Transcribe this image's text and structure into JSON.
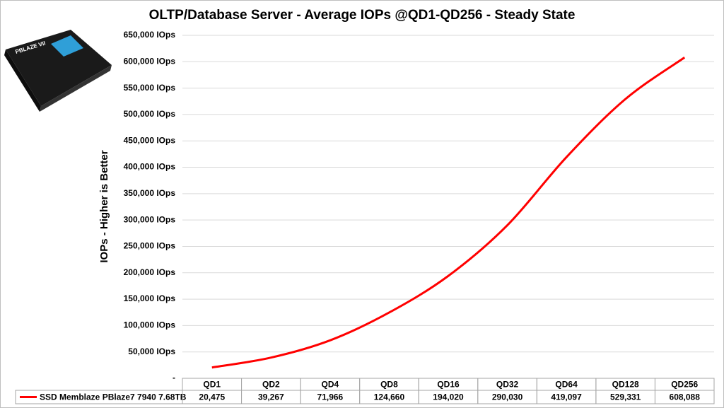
{
  "chart_data": {
    "type": "line",
    "title": "OLTP/Database Server - Average IOPs @QD1-QD256 - Steady State",
    "y_label": "IOPs  -  Higher is Better",
    "categories": [
      "QD1",
      "QD2",
      "QD4",
      "QD8",
      "QD16",
      "QD32",
      "QD64",
      "QD128",
      "QD256"
    ],
    "series": [
      {
        "name": "SSD Memblaze PBlaze7 7940 7.68TB",
        "color": "#ff0000",
        "values": [
          20475,
          39267,
          71966,
          124660,
          194020,
          290030,
          419097,
          529331,
          608088
        ],
        "value_labels": [
          "20,475",
          "39,267",
          "71,966",
          "124,660",
          "194,020",
          "290,030",
          "419,097",
          "529,331",
          "608,088"
        ]
      }
    ],
    "ylim": [
      0,
      650000
    ],
    "yticks": [
      {
        "value": 0,
        "label": "-"
      },
      {
        "value": 50000,
        "label": "50,000 IOps"
      },
      {
        "value": 100000,
        "label": "100,000 IOps"
      },
      {
        "value": 150000,
        "label": "150,000 IOps"
      },
      {
        "value": 200000,
        "label": "200,000 IOps"
      },
      {
        "value": 250000,
        "label": "250,000 IOps"
      },
      {
        "value": 300000,
        "label": "300,000 IOps"
      },
      {
        "value": 350000,
        "label": "350,000 IOps"
      },
      {
        "value": 400000,
        "label": "400,000 IOps"
      },
      {
        "value": 450000,
        "label": "450,000 IOps"
      },
      {
        "value": 500000,
        "label": "500,000 IOps"
      },
      {
        "value": 550000,
        "label": "550,000 IOps"
      },
      {
        "value": 600000,
        "label": "600,000 IOps"
      },
      {
        "value": 650000,
        "label": "650,000 IOps"
      }
    ],
    "grid": true
  }
}
